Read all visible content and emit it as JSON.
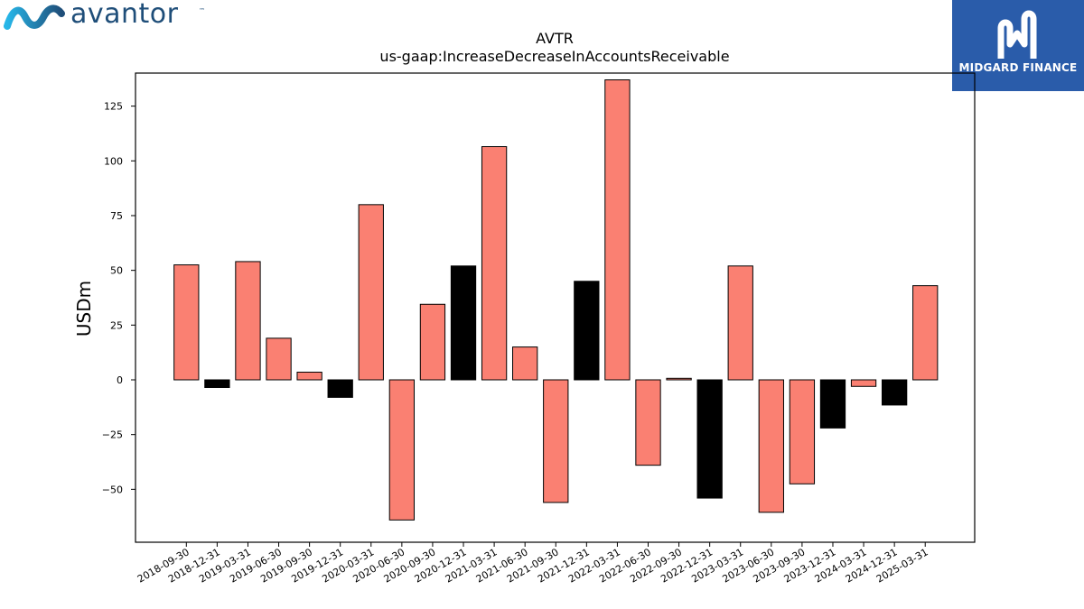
{
  "brand": {
    "name": "avantor",
    "tm": "™"
  },
  "watermark": {
    "name": "MIDGARD FINANCE",
    "bg_color": "#2a5caa"
  },
  "chart_data": {
    "type": "bar",
    "title": "AVTR",
    "subtitle": "us-gaap:IncreaseDecreaseInAccountsReceivable",
    "xlabel": "",
    "ylabel": "USDm",
    "ylim": [
      -74,
      140
    ],
    "yticks": [
      -50,
      -25,
      0,
      25,
      50,
      75,
      100,
      125
    ],
    "ytick_labels": [
      "−50",
      "−25",
      "0",
      "25",
      "50",
      "75",
      "100",
      "125"
    ],
    "grid": false,
    "legend": "none",
    "colors": {
      "salmon": "#fa8072",
      "black": "#000000"
    },
    "categories": [
      "2018-09-30",
      "2018-12-31",
      "2019-03-31",
      "2019-06-30",
      "2019-09-30",
      "2019-12-31",
      "2020-03-31",
      "2020-06-30",
      "2020-09-30",
      "2020-12-31",
      "2021-03-31",
      "2021-06-30",
      "2021-09-30",
      "2021-12-31",
      "2022-03-31",
      "2022-06-30",
      "2022-09-30",
      "2022-12-31",
      "2023-03-31",
      "2023-06-30",
      "2023-09-30",
      "2023-12-31",
      "2024-03-31",
      "2024-12-31",
      "2025-03-31"
    ],
    "values": [
      52.5,
      -3.5,
      54,
      19,
      3.5,
      -8,
      80,
      -64,
      34.5,
      52,
      106.5,
      15,
      -56,
      45,
      137,
      -39,
      0.7,
      -54,
      52,
      -60.5,
      -47.5,
      -22,
      -3,
      -11.5,
      43
    ],
    "bar_colors": [
      "salmon",
      "black",
      "salmon",
      "salmon",
      "salmon",
      "black",
      "salmon",
      "salmon",
      "salmon",
      "black",
      "salmon",
      "salmon",
      "salmon",
      "black",
      "salmon",
      "salmon",
      "salmon",
      "black",
      "salmon",
      "salmon",
      "salmon",
      "black",
      "salmon",
      "black",
      "salmon"
    ]
  }
}
